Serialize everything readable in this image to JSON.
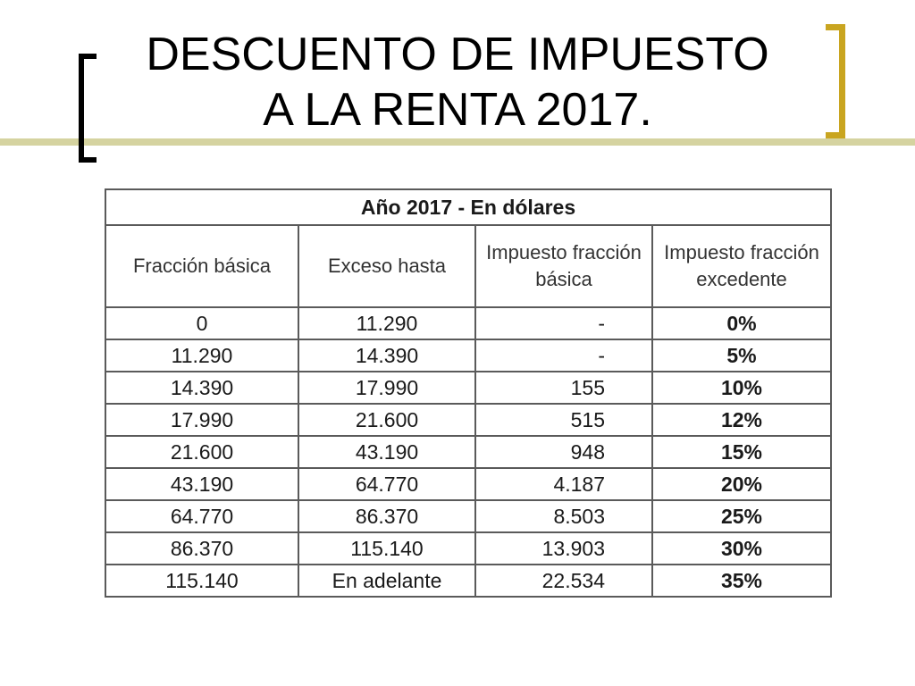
{
  "title": {
    "line1": "DESCUENTO DE IMPUESTO",
    "line2": "A LA RENTA 2017."
  },
  "colors": {
    "accent_line": "#d5d3a0",
    "left_bracket": "#000000",
    "right_bracket": "#c9a520"
  },
  "table": {
    "caption": "Año 2017 - En dólares",
    "headers": [
      "Fracción básica",
      "Exceso hasta",
      "Impuesto fracción básica",
      "Impuesto fracción excedente"
    ],
    "rows": [
      [
        "0",
        "11.290",
        "-",
        "0%"
      ],
      [
        "11.290",
        "14.390",
        "-",
        "5%"
      ],
      [
        "14.390",
        "17.990",
        "155",
        "10%"
      ],
      [
        "17.990",
        "21.600",
        "515",
        "12%"
      ],
      [
        "21.600",
        "43.190",
        "948",
        "15%"
      ],
      [
        "43.190",
        "64.770",
        "4.187",
        "20%"
      ],
      [
        "64.770",
        "86.370",
        "8.503",
        "25%"
      ],
      [
        "86.370",
        "115.140",
        "13.903",
        "30%"
      ],
      [
        "115.140",
        "En adelante",
        "22.534",
        "35%"
      ]
    ]
  }
}
